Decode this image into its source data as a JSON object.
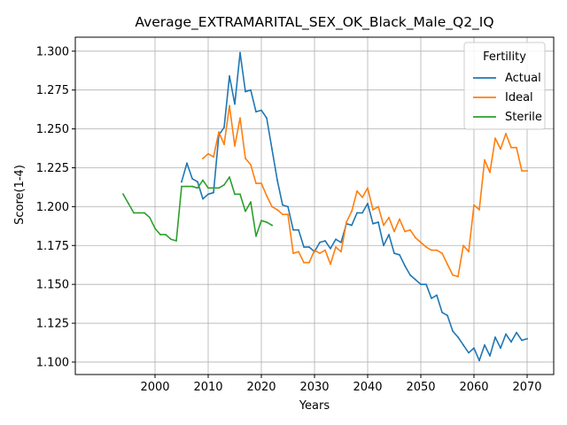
{
  "chart_data": {
    "type": "line",
    "title": "Average_EXTRAMARITAL_SEX_OK_Black_Male_Q2_IQ",
    "xlabel": "Years",
    "ylabel": "Score(1-4)",
    "xlim": [
      1985,
      2075
    ],
    "ylim": [
      1.092,
      1.309
    ],
    "xticks": [
      2000,
      2010,
      2020,
      2030,
      2040,
      2050,
      2060,
      2070
    ],
    "yticks": [
      1.1,
      1.125,
      1.15,
      1.175,
      1.2,
      1.225,
      1.25,
      1.275,
      1.3
    ],
    "ytick_labels": [
      "1.100",
      "1.125",
      "1.150",
      "1.175",
      "1.200",
      "1.225",
      "1.250",
      "1.275",
      "1.300"
    ],
    "grid": true,
    "legend": {
      "title": "Fertility",
      "position": "top-right"
    },
    "series": [
      {
        "name": "Actual",
        "color": "#1f77b4",
        "points": [
          [
            2005,
            1.216
          ],
          [
            2006,
            1.228
          ],
          [
            2007,
            1.218
          ],
          [
            2008,
            1.216
          ],
          [
            2009,
            1.205
          ],
          [
            2010,
            1.208
          ],
          [
            2011,
            1.209
          ],
          [
            2012,
            1.246
          ],
          [
            2013,
            1.251
          ],
          [
            2014,
            1.284
          ],
          [
            2015,
            1.266
          ],
          [
            2016,
            1.299
          ],
          [
            2017,
            1.274
          ],
          [
            2018,
            1.275
          ],
          [
            2019,
            1.261
          ],
          [
            2020,
            1.262
          ],
          [
            2021,
            1.257
          ],
          [
            2022,
            1.237
          ],
          [
            2023,
            1.217
          ],
          [
            2024,
            1.201
          ],
          [
            2025,
            1.2
          ],
          [
            2026,
            1.185
          ],
          [
            2027,
            1.185
          ],
          [
            2028,
            1.174
          ],
          [
            2029,
            1.174
          ],
          [
            2030,
            1.171
          ],
          [
            2031,
            1.177
          ],
          [
            2032,
            1.178
          ],
          [
            2033,
            1.173
          ],
          [
            2034,
            1.179
          ],
          [
            2035,
            1.177
          ],
          [
            2036,
            1.189
          ],
          [
            2037,
            1.188
          ],
          [
            2038,
            1.196
          ],
          [
            2039,
            1.196
          ],
          [
            2040,
            1.202
          ],
          [
            2041,
            1.189
          ],
          [
            2042,
            1.19
          ],
          [
            2043,
            1.175
          ],
          [
            2044,
            1.182
          ],
          [
            2045,
            1.17
          ],
          [
            2046,
            1.169
          ],
          [
            2047,
            1.162
          ],
          [
            2048,
            1.156
          ],
          [
            2049,
            1.153
          ],
          [
            2050,
            1.15
          ],
          [
            2051,
            1.15
          ],
          [
            2052,
            1.141
          ],
          [
            2053,
            1.143
          ],
          [
            2054,
            1.132
          ],
          [
            2055,
            1.13
          ],
          [
            2056,
            1.12
          ],
          [
            2057,
            1.116
          ],
          [
            2058,
            1.111
          ],
          [
            2059,
            1.106
          ],
          [
            2060,
            1.109
          ],
          [
            2061,
            1.101
          ],
          [
            2062,
            1.111
          ],
          [
            2063,
            1.104
          ],
          [
            2064,
            1.116
          ],
          [
            2065,
            1.109
          ],
          [
            2066,
            1.118
          ],
          [
            2067,
            1.113
          ],
          [
            2068,
            1.119
          ],
          [
            2069,
            1.114
          ],
          [
            2070,
            1.115
          ]
        ]
      },
      {
        "name": "Ideal",
        "color": "#ff7f0e",
        "points": [
          [
            2009,
            1.231
          ],
          [
            2010,
            1.234
          ],
          [
            2011,
            1.232
          ],
          [
            2012,
            1.248
          ],
          [
            2013,
            1.24
          ],
          [
            2014,
            1.265
          ],
          [
            2015,
            1.239
          ],
          [
            2016,
            1.257
          ],
          [
            2017,
            1.231
          ],
          [
            2018,
            1.227
          ],
          [
            2019,
            1.215
          ],
          [
            2020,
            1.215
          ],
          [
            2021,
            1.207
          ],
          [
            2022,
            1.2
          ],
          [
            2023,
            1.198
          ],
          [
            2024,
            1.195
          ],
          [
            2025,
            1.195
          ],
          [
            2026,
            1.17
          ],
          [
            2027,
            1.171
          ],
          [
            2028,
            1.164
          ],
          [
            2029,
            1.164
          ],
          [
            2030,
            1.172
          ],
          [
            2031,
            1.17
          ],
          [
            2032,
            1.172
          ],
          [
            2033,
            1.163
          ],
          [
            2034,
            1.174
          ],
          [
            2035,
            1.171
          ],
          [
            2036,
            1.19
          ],
          [
            2037,
            1.197
          ],
          [
            2038,
            1.21
          ],
          [
            2039,
            1.206
          ],
          [
            2040,
            1.212
          ],
          [
            2041,
            1.198
          ],
          [
            2042,
            1.2
          ],
          [
            2043,
            1.188
          ],
          [
            2044,
            1.193
          ],
          [
            2045,
            1.184
          ],
          [
            2046,
            1.192
          ],
          [
            2047,
            1.184
          ],
          [
            2048,
            1.185
          ],
          [
            2049,
            1.18
          ],
          [
            2050,
            1.177
          ],
          [
            2051,
            1.174
          ],
          [
            2052,
            1.172
          ],
          [
            2053,
            1.172
          ],
          [
            2054,
            1.17
          ],
          [
            2055,
            1.163
          ],
          [
            2056,
            1.156
          ],
          [
            2057,
            1.155
          ],
          [
            2058,
            1.175
          ],
          [
            2059,
            1.171
          ],
          [
            2060,
            1.201
          ],
          [
            2061,
            1.198
          ],
          [
            2062,
            1.23
          ],
          [
            2063,
            1.222
          ],
          [
            2064,
            1.244
          ],
          [
            2065,
            1.237
          ],
          [
            2066,
            1.247
          ],
          [
            2067,
            1.238
          ],
          [
            2068,
            1.238
          ],
          [
            2069,
            1.223
          ],
          [
            2070,
            1.223
          ]
        ]
      },
      {
        "name": "Sterile",
        "color": "#2ca02c",
        "points": [
          [
            1994,
            1.208
          ],
          [
            1995,
            1.202
          ],
          [
            1996,
            1.196
          ],
          [
            1997,
            1.196
          ],
          [
            1998,
            1.196
          ],
          [
            1999,
            1.193
          ],
          [
            2000,
            1.186
          ],
          [
            2001,
            1.182
          ],
          [
            2002,
            1.182
          ],
          [
            2003,
            1.179
          ],
          [
            2004,
            1.178
          ],
          [
            2005,
            1.213
          ],
          [
            2006,
            1.213
          ],
          [
            2007,
            1.213
          ],
          [
            2008,
            1.212
          ],
          [
            2009,
            1.217
          ],
          [
            2010,
            1.212
          ],
          [
            2011,
            1.212
          ],
          [
            2012,
            1.212
          ],
          [
            2013,
            1.214
          ],
          [
            2014,
            1.219
          ],
          [
            2015,
            1.208
          ],
          [
            2016,
            1.208
          ],
          [
            2017,
            1.197
          ],
          [
            2018,
            1.203
          ],
          [
            2019,
            1.181
          ],
          [
            2020,
            1.191
          ],
          [
            2021,
            1.19
          ],
          [
            2022,
            1.188
          ]
        ]
      }
    ]
  }
}
